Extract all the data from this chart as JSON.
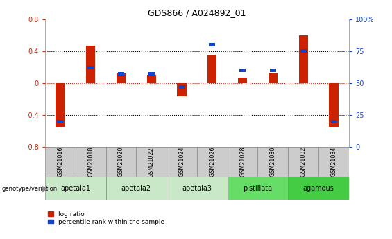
{
  "title": "GDS866 / A024892_01",
  "samples": [
    "GSM21016",
    "GSM21018",
    "GSM21020",
    "GSM21022",
    "GSM21024",
    "GSM21026",
    "GSM21028",
    "GSM21030",
    "GSM21032",
    "GSM21034"
  ],
  "log_ratio": [
    -0.55,
    0.47,
    0.13,
    0.1,
    -0.17,
    0.35,
    0.07,
    0.13,
    0.6,
    -0.55
  ],
  "percentile_rank": [
    20,
    62,
    57,
    57,
    47,
    80,
    60,
    60,
    75,
    20
  ],
  "groups": [
    {
      "name": "apetala1",
      "start": 0,
      "end": 2,
      "color": "#c8e8c8"
    },
    {
      "name": "apetala2",
      "start": 2,
      "end": 4,
      "color": "#c8e8c8"
    },
    {
      "name": "apetala3",
      "start": 4,
      "end": 6,
      "color": "#c8e8c8"
    },
    {
      "name": "pistillata",
      "start": 6,
      "end": 8,
      "color": "#66dd66"
    },
    {
      "name": "agamous",
      "start": 8,
      "end": 10,
      "color": "#44cc44"
    }
  ],
  "ylim_left": [
    -0.8,
    0.8
  ],
  "ylim_right": [
    0,
    100
  ],
  "bar_color_red": "#cc2200",
  "bar_color_blue": "#1144cc",
  "zero_line_color": "#cc2200",
  "grid_color": "#000000",
  "left_tick_color": "#cc2200",
  "right_tick_color": "#1144cc",
  "red_bar_width": 0.3,
  "blue_bar_width": 0.2,
  "blue_bar_height": 0.045,
  "legend_label_red": "log ratio",
  "legend_label_blue": "percentile rank within the sample",
  "sample_box_color": "#cccccc",
  "sample_box_edge": "#888888"
}
